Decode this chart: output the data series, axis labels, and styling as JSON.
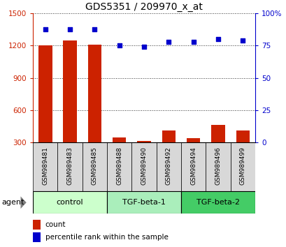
{
  "title": "GDS5351 / 209970_x_at",
  "samples": [
    "GSM989481",
    "GSM989483",
    "GSM989485",
    "GSM989488",
    "GSM989490",
    "GSM989492",
    "GSM989494",
    "GSM989496",
    "GSM989499"
  ],
  "counts": [
    1200,
    1250,
    1210,
    340,
    310,
    410,
    335,
    460,
    405
  ],
  "percentiles": [
    88,
    88,
    88,
    75,
    74,
    78,
    78,
    80,
    79
  ],
  "groups": [
    {
      "label": "control",
      "indices": [
        0,
        1,
        2
      ],
      "color": "#ccffcc"
    },
    {
      "label": "TGF-beta-1",
      "indices": [
        3,
        4,
        5
      ],
      "color": "#aaeebb"
    },
    {
      "label": "TGF-beta-2",
      "indices": [
        6,
        7,
        8
      ],
      "color": "#44cc66"
    }
  ],
  "ylim_left": [
    300,
    1500
  ],
  "ylim_right": [
    0,
    100
  ],
  "yticks_left": [
    300,
    600,
    900,
    1200,
    1500
  ],
  "yticks_right": [
    0,
    25,
    50,
    75,
    100
  ],
  "bar_color": "#cc2200",
  "dot_color": "#0000cc",
  "bar_width": 0.55,
  "grid_color": "#333333",
  "sample_box_color": "#d8d8d8",
  "legend_items": [
    {
      "label": "count",
      "color": "#cc2200"
    },
    {
      "label": "percentile rank within the sample",
      "color": "#0000cc"
    }
  ]
}
